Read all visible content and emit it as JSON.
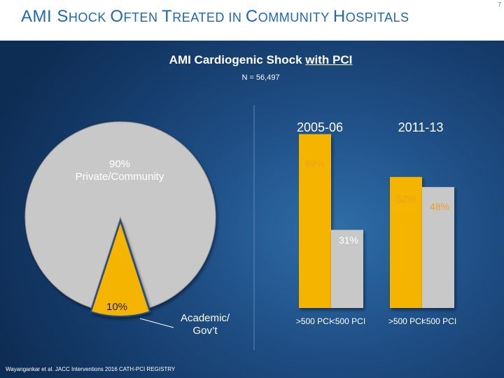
{
  "header": {
    "title_parts": [
      {
        "big": "AMI ",
        "small": ""
      },
      {
        "big": "S",
        "small": "HOCK "
      },
      {
        "big": "O",
        "small": "FTEN "
      },
      {
        "big": "T",
        "small": "REATED IN "
      },
      {
        "big": "C",
        "small": "OMMUNITY "
      },
      {
        "big": "H",
        "small": "OSPITALS"
      }
    ],
    "slide_number": "7"
  },
  "chart_title": {
    "prefix": "AMI Cardiogenic Shock ",
    "underlined": "with PCI"
  },
  "subtitle": "N = 56,497",
  "footnote": "Wayangankar et al. JACC Interventions 2016 CATH-PCI REGISTRY",
  "colors": {
    "accent": "#f5b400",
    "grey": "#c8c8c8",
    "title_blue": "#1f66b3",
    "label_orange": "#f0a020"
  },
  "chart_data": [
    {
      "type": "pie",
      "title": "",
      "slices": [
        {
          "label": "Private/Community",
          "value": 90,
          "display": "90%",
          "color": "#c8c8c8"
        },
        {
          "label": "Academic/ Gov’t",
          "value": 10,
          "display": "10%",
          "color": "#f5b400"
        }
      ]
    },
    {
      "type": "bar",
      "title": "",
      "groups": [
        "2005-06",
        "2011-13"
      ],
      "categories": [
        ">500 PCI",
        "<500 PCI"
      ],
      "series": [
        {
          "name": ">500 PCI",
          "values": [
            69,
            52
          ],
          "labels": [
            "69%",
            "52%"
          ],
          "color": "#f5b400"
        },
        {
          "name": "<500 PCI",
          "values": [
            31,
            48
          ],
          "labels": [
            "31%",
            "48%"
          ],
          "color": "#c8c8c8"
        }
      ],
      "ylim": [
        0,
        100
      ],
      "grid": false,
      "legend": "none"
    }
  ]
}
